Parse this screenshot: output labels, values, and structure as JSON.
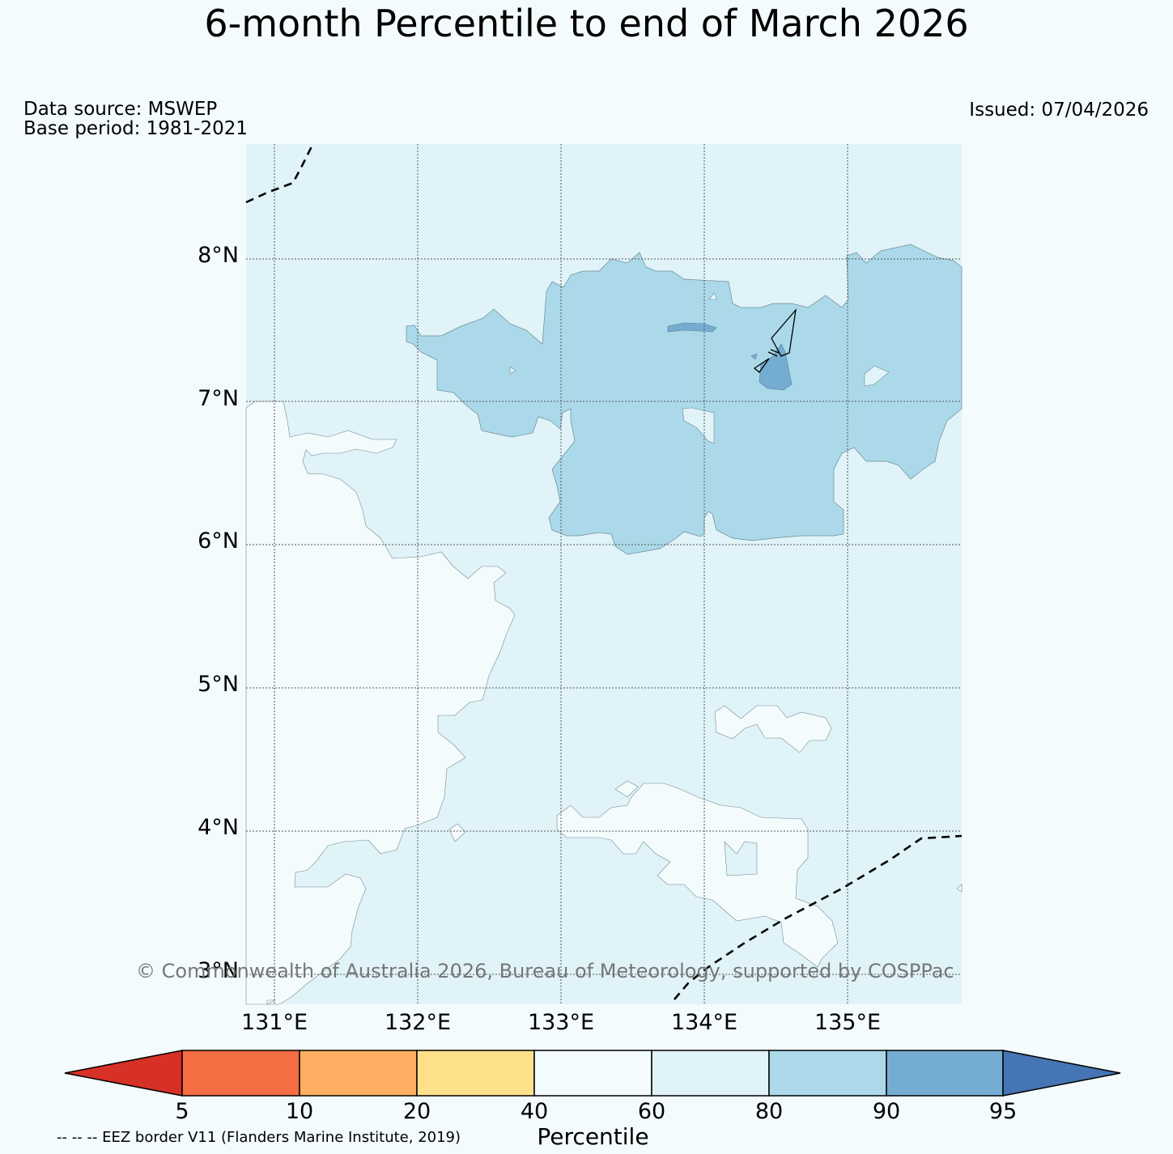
{
  "title": "6-month Percentile to end of March 2026",
  "data_source": "Data source: MSWEP",
  "base_period": "Base period: 1981-2021",
  "issued": "Issued: 07/04/2026",
  "copyright": "© Commonwealth of Australia 2026, Bureau of Meteorology, supported by COSPPac",
  "eez_note": "-- -- -- EEZ border V11 (Flanders Marine Institute, 2019)",
  "lat_labels": [
    "8°N",
    "7°N",
    "6°N",
    "5°N",
    "4°N",
    "3°N"
  ],
  "lon_labels": [
    "131°E",
    "132°E",
    "133°E",
    "134°E",
    "135°E"
  ],
  "colorbar": {
    "label": "Percentile",
    "ticks": [
      "5",
      "10",
      "20",
      "40",
      "60",
      "80",
      "90",
      "95"
    ],
    "colors": [
      "#d73027",
      "#f46d43",
      "#fdae61",
      "#fee08b",
      "#f3fbfd",
      "#e0f3f8",
      "#abd9e9",
      "#74add1",
      "#4575b4"
    ]
  },
  "map_colors": {
    "p60_80": "#e0f3f8",
    "p40_60": "#f3fbfd",
    "p80_90": "#abd9e9",
    "p90_95": "#74add1"
  }
}
